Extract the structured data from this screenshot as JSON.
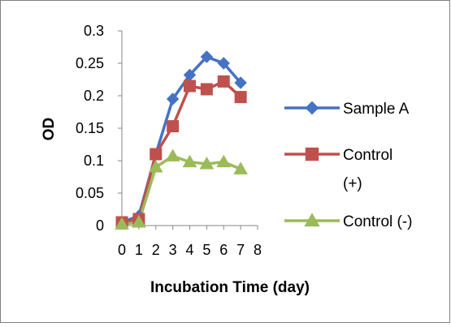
{
  "chart_data": {
    "type": "line",
    "title": "",
    "xlabel": "Incubation Time (day)",
    "ylabel": "OD",
    "xlim": [
      0,
      8
    ],
    "ylim": [
      0,
      0.3
    ],
    "x_ticks": [
      "0",
      "1",
      "2",
      "3",
      "4",
      "5",
      "6",
      "7",
      "8"
    ],
    "y_ticks": [
      "0",
      "0.05",
      "0.1",
      "0.15",
      "0.2",
      "0.25",
      "0.3"
    ],
    "legend_position": "right",
    "grid": false,
    "series": [
      {
        "name": "Sample A",
        "legend_lines": [
          "Sample A"
        ],
        "marker": "diamond",
        "color": "#4472C4",
        "x": [
          0,
          1,
          2,
          3,
          4,
          5,
          6,
          7
        ],
        "y": [
          0.005,
          0.015,
          0.11,
          0.195,
          0.232,
          0.26,
          0.25,
          0.22
        ]
      },
      {
        "name": "Control (+)",
        "legend_lines": [
          "Control",
          "(+)"
        ],
        "marker": "square",
        "color": "#C0504D",
        "x": [
          0,
          1,
          2,
          3,
          4,
          5,
          6,
          7
        ],
        "y": [
          0.005,
          0.01,
          0.11,
          0.153,
          0.215,
          0.21,
          0.222,
          0.198
        ]
      },
      {
        "name": "Control (-)",
        "legend_lines": [
          "Control (-)"
        ],
        "marker": "triangle",
        "color": "#9BBB59",
        "x": [
          0,
          1,
          2,
          3,
          4,
          5,
          6,
          7
        ],
        "y": [
          0.002,
          0.005,
          0.09,
          0.107,
          0.098,
          0.095,
          0.098,
          0.087
        ]
      }
    ]
  }
}
